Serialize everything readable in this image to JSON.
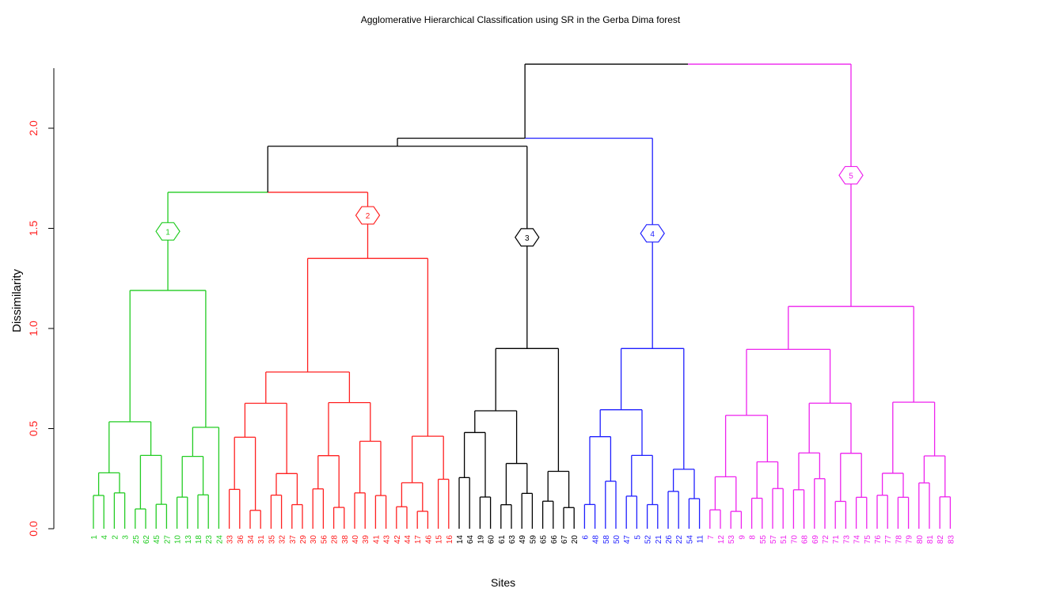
{
  "chart_data": {
    "type": "dendrogram",
    "title": "Agglomerative Hierarchical Classification using SR in the Gerba Dima forest",
    "xlabel": "Sites",
    "ylabel": "Dissimilarity",
    "ylim": [
      0,
      2.3
    ],
    "yticks": [
      "0.0",
      "0.5",
      "1.0",
      "1.5",
      "2.0"
    ],
    "ytick_values": [
      0,
      0.5,
      1.0,
      1.5,
      2.0
    ],
    "clusters": [
      {
        "label": "1",
        "color": "#22cc22",
        "leaf_count": 13,
        "merge_height": 1.68
      },
      {
        "label": "2",
        "color": "#ff2020",
        "leaf_count": 22,
        "merge_height": 1.68
      },
      {
        "label": "3",
        "color": "#000000",
        "leaf_count": 12,
        "merge_height": 1.91
      },
      {
        "label": "4",
        "color": "#1f1fff",
        "leaf_count": 12,
        "merge_height": 1.95
      },
      {
        "label": "5",
        "color": "#ee22ee",
        "leaf_count": 24,
        "merge_height": 2.32
      }
    ],
    "top_merges": [
      {
        "between": "1+2",
        "height": 1.68
      },
      {
        "between": "(1+2)+3",
        "height": 1.91
      },
      {
        "between": "((1+2)+3)+4",
        "height": 1.95
      },
      {
        "between": "all+5",
        "height": 2.32
      }
    ],
    "leaf_labels": [
      "1",
      "4",
      "2",
      "3",
      "25",
      "62",
      "45",
      "27",
      "10",
      "13",
      "18",
      "23",
      "24",
      "33",
      "36",
      "34",
      "31",
      "35",
      "32",
      "37",
      "29",
      "30",
      "56",
      "28",
      "38",
      "40",
      "39",
      "41",
      "43",
      "42",
      "44",
      "17",
      "46",
      "15",
      "16",
      "14",
      "64",
      "19",
      "60",
      "61",
      "63",
      "49",
      "59",
      "65",
      "66",
      "67",
      "20",
      "6",
      "48",
      "58",
      "50",
      "47",
      "5",
      "52",
      "21",
      "26",
      "22",
      "54",
      "11",
      "7",
      "12",
      "53",
      "9",
      "8",
      "55",
      "57",
      "51",
      "70",
      "68",
      "69",
      "72",
      "71",
      "73",
      "74",
      "75",
      "76",
      "77",
      "78",
      "79",
      "80",
      "81",
      "82",
      "83"
    ]
  }
}
